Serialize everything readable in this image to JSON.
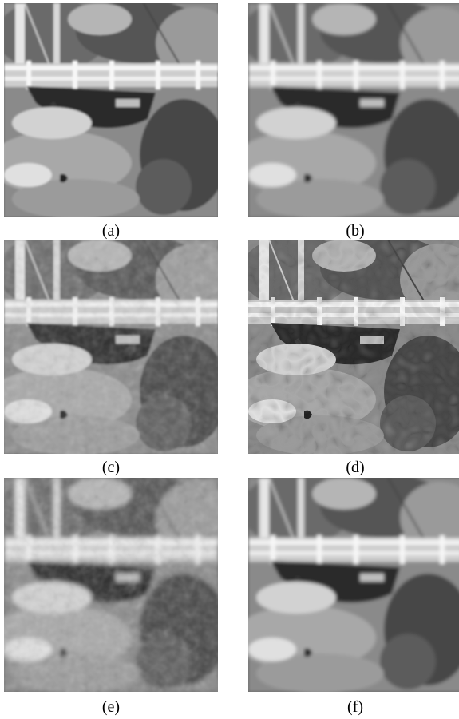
{
  "figure": {
    "panels": [
      {
        "id": "a",
        "label": "(a)"
      },
      {
        "id": "b",
        "label": "(b)"
      },
      {
        "id": "c",
        "label": "(c)"
      },
      {
        "id": "d",
        "label": "(d)"
      },
      {
        "id": "e",
        "label": "(e)"
      },
      {
        "id": "f",
        "label": "(f)"
      }
    ]
  }
}
